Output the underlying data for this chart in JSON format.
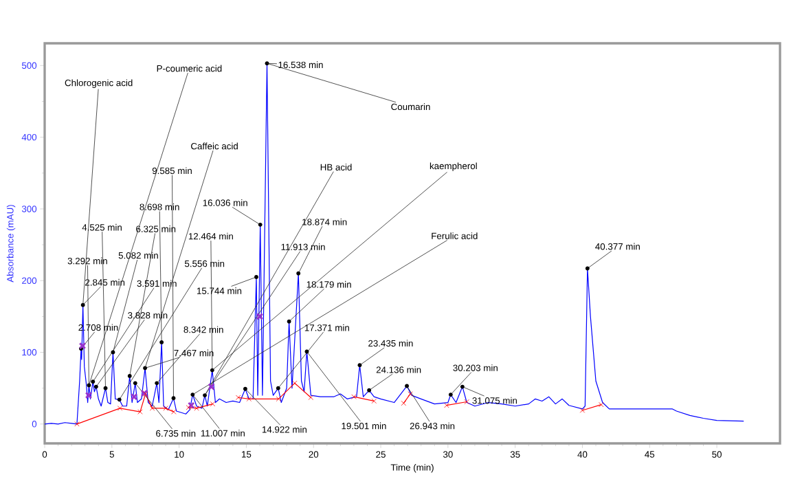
{
  "chart_data": {
    "type": "line",
    "xlabel": "Time (min)",
    "ylabel": "Absorbance (mAU)",
    "xlim": [
      0,
      54.7
    ],
    "ylim": [
      -27,
      531
    ],
    "xticks": [
      0,
      5,
      10,
      15,
      20,
      25,
      30,
      35,
      40,
      45,
      50
    ],
    "yticks": [
      0,
      100,
      200,
      300,
      400,
      500
    ],
    "series": [
      {
        "type": "line",
        "color": "#0000ff",
        "x": [
          0,
          0.5,
          1,
          1.5,
          2,
          2.4,
          2.6,
          2.708,
          2.75,
          2.845,
          2.95,
          3.1,
          3.2,
          3.292,
          3.4,
          3.591,
          3.7,
          3.828,
          4.0,
          4.2,
          4.525,
          4.7,
          4.9,
          5.082,
          5.25,
          5.556,
          5.8,
          6.1,
          6.325,
          6.5,
          6.735,
          6.9,
          7.2,
          7.467,
          7.7,
          8.0,
          8.342,
          8.5,
          8.698,
          8.85,
          9.2,
          9.585,
          9.8,
          10.5,
          10.8,
          11.007,
          11.3,
          11.7,
          11.913,
          12.1,
          12.464,
          12.7,
          13.0,
          13.5,
          14.0,
          14.5,
          14.922,
          15.2,
          15.5,
          15.744,
          15.85,
          16.036,
          16.2,
          16.538,
          16.8,
          17.0,
          17.371,
          17.6,
          18.0,
          18.179,
          18.4,
          18.874,
          19.1,
          19.3,
          19.501,
          19.8,
          20.5,
          21.5,
          22.0,
          22.5,
          23.2,
          23.435,
          23.7,
          24.136,
          24.5,
          25.0,
          26.0,
          26.943,
          27.3,
          28.0,
          29.0,
          30.0,
          30.203,
          30.6,
          31.075,
          31.4,
          32.0,
          33.0,
          34.0,
          35.0,
          36.0,
          36.5,
          37.0,
          37.5,
          38.0,
          38.5,
          39.0,
          40.0,
          40.2,
          40.377,
          40.6,
          41.0,
          41.5,
          42.0,
          44.0,
          46.0,
          46.7,
          47.0,
          48.0,
          49.0,
          50.0,
          52.0
        ],
        "values": [
          0,
          1,
          0,
          2,
          1,
          0,
          60,
          105,
          90,
          166,
          80,
          55,
          30,
          54,
          35,
          59,
          45,
          52,
          35,
          25,
          50,
          30,
          28,
          100,
          35,
          34,
          25,
          25,
          67,
          30,
          57,
          30,
          35,
          78,
          30,
          25,
          57,
          30,
          114,
          25,
          20,
          36,
          18,
          14,
          20,
          41,
          25,
          22,
          40,
          25,
          75,
          30,
          35,
          30,
          32,
          30,
          49,
          35,
          35,
          205,
          40,
          278,
          40,
          503,
          60,
          40,
          50,
          30,
          50,
          143,
          50,
          210,
          60,
          45,
          101,
          40,
          38,
          38,
          42,
          35,
          38,
          82,
          38,
          47,
          38,
          35,
          30,
          53,
          40,
          35,
          28,
          30,
          41,
          30,
          52,
          30,
          25,
          30,
          28,
          25,
          28,
          35,
          32,
          38,
          28,
          35,
          26,
          21,
          25,
          217,
          150,
          60,
          30,
          21,
          21,
          21,
          21,
          18,
          12,
          8,
          5,
          4
        ]
      },
      {
        "type": "line",
        "color": "#ff0000",
        "marker": "cross",
        "x": [
          2.4,
          5.6,
          7.1,
          7.5,
          8.0,
          9.0,
          9.6,
          10.2,
          10.7,
          11.3,
          12.5,
          13.5,
          14.4,
          15.2,
          17.4,
          18.6,
          19.8,
          21.5,
          23.0,
          24.5,
          25.5,
          26.7,
          27.2,
          28.5,
          29.9,
          31.4,
          35.0,
          40.0,
          41.4
        ],
        "values": [
          0,
          22,
          17,
          42,
          22,
          22,
          17,
          null,
          23,
          22,
          28,
          null,
          37,
          35,
          35,
          57,
          37,
          null,
          38,
          32,
          null,
          29,
          42,
          null,
          26,
          31,
          null,
          19,
          27
        ]
      },
      {
        "type": "scatter",
        "color": "#9933cc",
        "marker": "cross",
        "x": [
          2.81,
          3.27,
          6.65,
          7.41,
          10.9,
          12.4,
          16.0
        ],
        "values": [
          109,
          40,
          38,
          43,
          26,
          52,
          150
        ]
      }
    ],
    "annotations": [
      {
        "text": "2.708 min",
        "x": 2.708,
        "y": 105
      },
      {
        "text": "2.845 min",
        "x": 2.845,
        "y": 166
      },
      {
        "text": "3.292 min",
        "x": 3.292,
        "y": 54
      },
      {
        "text": "3.591 min",
        "x": 3.591,
        "y": 59
      },
      {
        "text": "3.828 min",
        "x": 3.828,
        "y": 52
      },
      {
        "text": "4.525 min",
        "x": 4.525,
        "y": 50
      },
      {
        "text": "5.082 min",
        "x": 5.082,
        "y": 100
      },
      {
        "text": "5.556 min",
        "x": 5.556,
        "y": 34
      },
      {
        "text": "6.325 min",
        "x": 6.325,
        "y": 67
      },
      {
        "text": "6.735 min",
        "x": 6.735,
        "y": 57
      },
      {
        "text": "7.467 min",
        "x": 7.467,
        "y": 78
      },
      {
        "text": "8.342 min",
        "x": 8.342,
        "y": 57
      },
      {
        "text": "8.698 min",
        "x": 8.698,
        "y": 114
      },
      {
        "text": "9.585 min",
        "x": 9.585,
        "y": 36
      },
      {
        "text": "11.007 min",
        "x": 11.007,
        "y": 41
      },
      {
        "text": "11.913 min",
        "x": 11.913,
        "y": 40
      },
      {
        "text": "12.464 min",
        "x": 12.464,
        "y": 75
      },
      {
        "text": "14.922 min",
        "x": 14.922,
        "y": 49
      },
      {
        "text": "15.744 min",
        "x": 15.744,
        "y": 205
      },
      {
        "text": "16.036 min",
        "x": 16.036,
        "y": 278
      },
      {
        "text": "16.538 min",
        "x": 16.538,
        "y": 503
      },
      {
        "text": "17.371 min",
        "x": 17.371,
        "y": 50
      },
      {
        "text": "18.179 min",
        "x": 18.179,
        "y": 143
      },
      {
        "text": "18.874 min",
        "x": 18.874,
        "y": 210
      },
      {
        "text": "19.501 min",
        "x": 19.501,
        "y": 101
      },
      {
        "text": "23.435 min",
        "x": 23.435,
        "y": 82
      },
      {
        "text": "24.136 min",
        "x": 24.136,
        "y": 47
      },
      {
        "text": "26.943 min",
        "x": 26.943,
        "y": 53
      },
      {
        "text": "30.203 min",
        "x": 30.203,
        "y": 41
      },
      {
        "text": "31.075 min",
        "x": 31.075,
        "y": 52
      },
      {
        "text": "40.377 min",
        "x": 40.377,
        "y": 217
      },
      {
        "text": "Chlorogenic acid",
        "x": 2.845,
        "y": 166
      },
      {
        "text": "P-coumeric acid",
        "x": 3.292,
        "y": 54
      },
      {
        "text": "Caffeic acid",
        "x": 7.467,
        "y": 78
      },
      {
        "text": "HB acid",
        "x": 11.913,
        "y": 40
      },
      {
        "text": "kaempherol",
        "x": 12.464,
        "y": 75
      },
      {
        "text": "Ferulic acid",
        "x": 11.007,
        "y": 41
      },
      {
        "text": "Coumarin",
        "x": 16.538,
        "y": 503
      }
    ]
  }
}
